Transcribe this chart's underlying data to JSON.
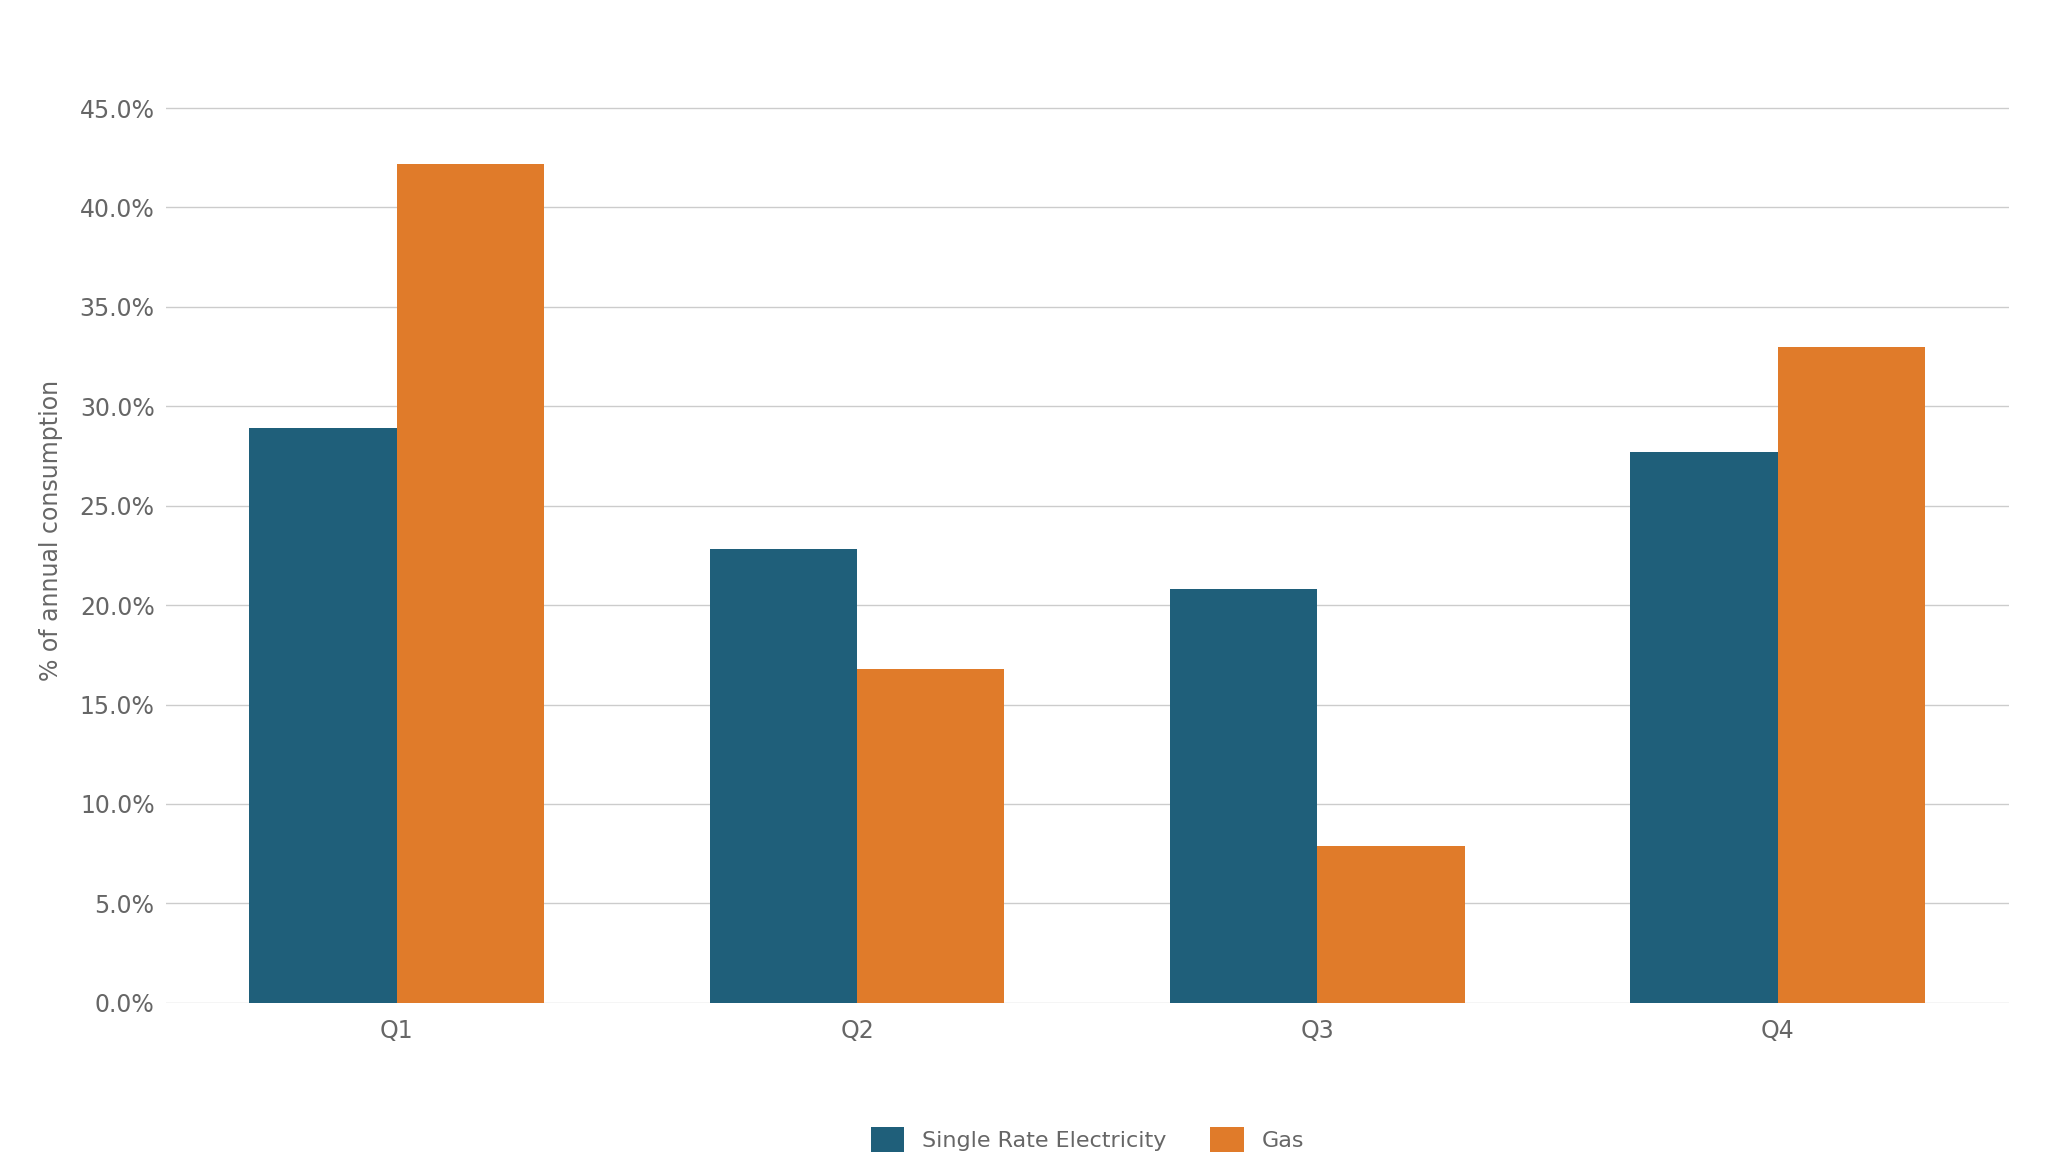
{
  "categories": [
    "Q1",
    "Q2",
    "Q3",
    "Q4"
  ],
  "single_rate_electricity": [
    0.289,
    0.228,
    0.208,
    0.277
  ],
  "gas": [
    0.422,
    0.168,
    0.079,
    0.33
  ],
  "electricity_color": "#1F5F7A",
  "gas_color": "#E07B2A",
  "ylabel": "% of annual consumption",
  "ylim": [
    0,
    0.475
  ],
  "yticks": [
    0.0,
    0.05,
    0.1,
    0.15,
    0.2,
    0.25,
    0.3,
    0.35,
    0.4,
    0.45
  ],
  "legend_labels": [
    "Single Rate Electricity",
    "Gas"
  ],
  "background_color": "#FFFFFF",
  "grid_color": "#CCCCCC",
  "bar_width": 0.32,
  "tick_fontsize": 17,
  "label_fontsize": 17,
  "legend_fontsize": 16
}
